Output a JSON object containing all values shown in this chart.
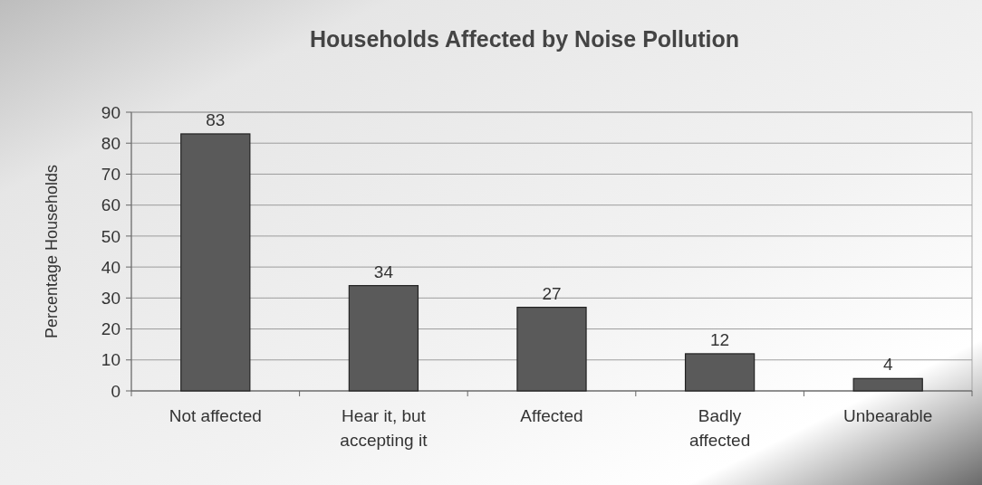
{
  "chart_data": {
    "type": "bar",
    "title": "Households Affected by Noise Pollution",
    "ylabel": "Percentage Households",
    "categories": [
      "Not affected",
      "Hear it, but accepting it",
      "Affected",
      "Badly affected",
      "Unbearable"
    ],
    "values": [
      83,
      34,
      27,
      12,
      4
    ],
    "color": "#5a5a5a",
    "ylim": [
      0,
      90
    ],
    "yticks": [
      0,
      10,
      20,
      30,
      40,
      50,
      60,
      70,
      80,
      90
    ],
    "grid": "y",
    "data_labels": true
  }
}
